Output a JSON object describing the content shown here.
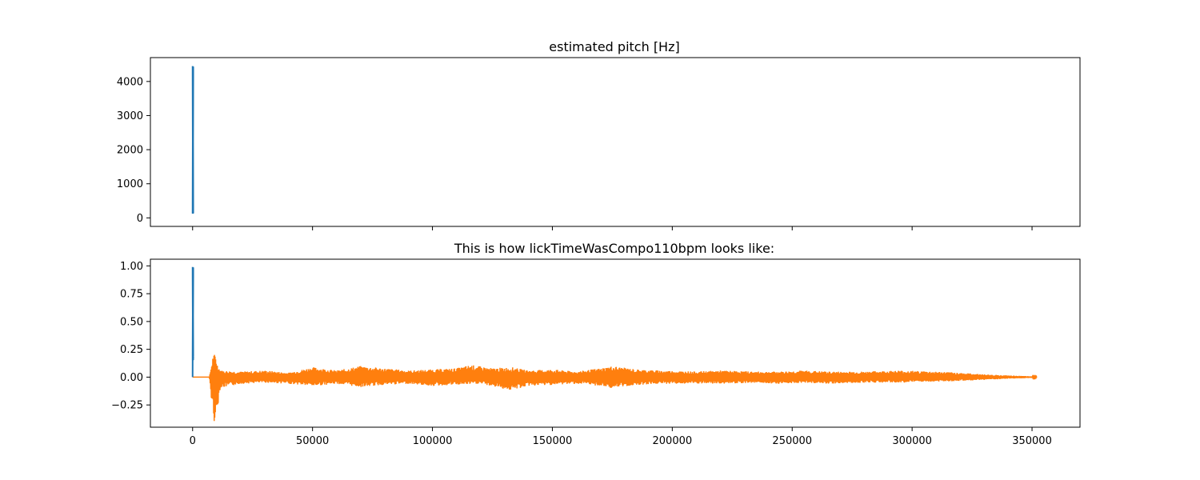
{
  "chart_data": [
    {
      "type": "line",
      "title": "estimated pitch [Hz]",
      "xlabel": "",
      "ylabel": "",
      "xlim": [
        -17600,
        370000
      ],
      "ylim": [
        -250,
        4700
      ],
      "x_ticks": [
        0,
        50000,
        100000,
        150000,
        200000,
        250000,
        300000,
        350000
      ],
      "x_tick_labels_visible": false,
      "y_ticks": [
        0,
        1000,
        2000,
        3000,
        4000
      ],
      "y_tick_labels": [
        "0",
        "1000",
        "2000",
        "3000",
        "4000"
      ],
      "grid": false,
      "series": [
        {
          "color": "#1f77b4",
          "description_values": {
            "x_start": 0,
            "x_end": 300,
            "y_min": 0,
            "y_max": 4450
          }
        }
      ]
    },
    {
      "type": "line",
      "title": "This is how lickTimeWasCompo110bpm looks like:",
      "xlabel": "",
      "ylabel": "",
      "xlim": [
        -17600,
        370000
      ],
      "ylim": [
        -0.45,
        1.06
      ],
      "x_ticks": [
        0,
        50000,
        100000,
        150000,
        200000,
        250000,
        300000,
        350000
      ],
      "x_tick_labels": [
        "0",
        "50000",
        "100000",
        "150000",
        "200000",
        "250000",
        "300000",
        "350000"
      ],
      "y_ticks": [
        -0.25,
        0,
        0.25,
        0.5,
        0.75,
        1.0
      ],
      "y_tick_labels": [
        "−0.25",
        "0.00",
        "0.25",
        "0.50",
        "0.75",
        "1.00"
      ],
      "grid": false,
      "series": [
        {
          "color": "#1f77b4",
          "description_values": {
            "x_start": 0,
            "x_end": 300,
            "y_min": 0.0,
            "y_max": 0.99
          }
        },
        {
          "color": "#ff7f0e",
          "envelope": [
            [
              0,
              0.0
            ],
            [
              7000,
              0.0
            ],
            [
              8500,
              0.2
            ],
            [
              9500,
              0.21
            ],
            [
              10500,
              0.1
            ],
            [
              12000,
              0.06
            ],
            [
              20000,
              0.05
            ],
            [
              30000,
              0.06
            ],
            [
              40000,
              0.04
            ],
            [
              50000,
              0.09
            ],
            [
              60000,
              0.06
            ],
            [
              70000,
              0.1
            ],
            [
              80000,
              0.08
            ],
            [
              90000,
              0.06
            ],
            [
              100000,
              0.07
            ],
            [
              110000,
              0.08
            ],
            [
              116000,
              0.11
            ],
            [
              125000,
              0.08
            ],
            [
              133000,
              0.09
            ],
            [
              140000,
              0.06
            ],
            [
              150000,
              0.07
            ],
            [
              160000,
              0.05
            ],
            [
              170000,
              0.08
            ],
            [
              175000,
              0.1
            ],
            [
              185000,
              0.07
            ],
            [
              195000,
              0.06
            ],
            [
              210000,
              0.05
            ],
            [
              220000,
              0.06
            ],
            [
              235000,
              0.05
            ],
            [
              245000,
              0.05
            ],
            [
              255000,
              0.06
            ],
            [
              265000,
              0.05
            ],
            [
              280000,
              0.05
            ],
            [
              295000,
              0.06
            ],
            [
              310000,
              0.05
            ],
            [
              320000,
              0.04
            ],
            [
              330000,
              0.025
            ],
            [
              340000,
              0.015
            ],
            [
              352000,
              0.005
            ]
          ],
          "low_envelope": [
            [
              0,
              0.0
            ],
            [
              7000,
              0.0
            ],
            [
              8000,
              -0.25
            ],
            [
              9000,
              -0.4
            ],
            [
              10000,
              -0.35
            ],
            [
              11500,
              -0.1
            ],
            [
              20000,
              -0.06
            ],
            [
              30000,
              -0.05
            ],
            [
              40000,
              -0.06
            ],
            [
              50000,
              -0.08
            ],
            [
              60000,
              -0.06
            ],
            [
              70000,
              -0.09
            ],
            [
              80000,
              -0.07
            ],
            [
              90000,
              -0.06
            ],
            [
              100000,
              -0.08
            ],
            [
              110000,
              -0.07
            ],
            [
              120000,
              -0.06
            ],
            [
              133000,
              -0.12
            ],
            [
              140000,
              -0.08
            ],
            [
              150000,
              -0.07
            ],
            [
              160000,
              -0.06
            ],
            [
              170000,
              -0.08
            ],
            [
              175000,
              -0.1
            ],
            [
              185000,
              -0.07
            ],
            [
              195000,
              -0.06
            ],
            [
              210000,
              -0.06
            ],
            [
              220000,
              -0.06
            ],
            [
              235000,
              -0.05
            ],
            [
              245000,
              -0.06
            ],
            [
              255000,
              -0.05
            ],
            [
              265000,
              -0.06
            ],
            [
              280000,
              -0.05
            ],
            [
              295000,
              -0.05
            ],
            [
              310000,
              -0.04
            ],
            [
              320000,
              -0.035
            ],
            [
              330000,
              -0.025
            ],
            [
              340000,
              -0.015
            ],
            [
              352000,
              -0.005
            ]
          ]
        }
      ]
    }
  ]
}
